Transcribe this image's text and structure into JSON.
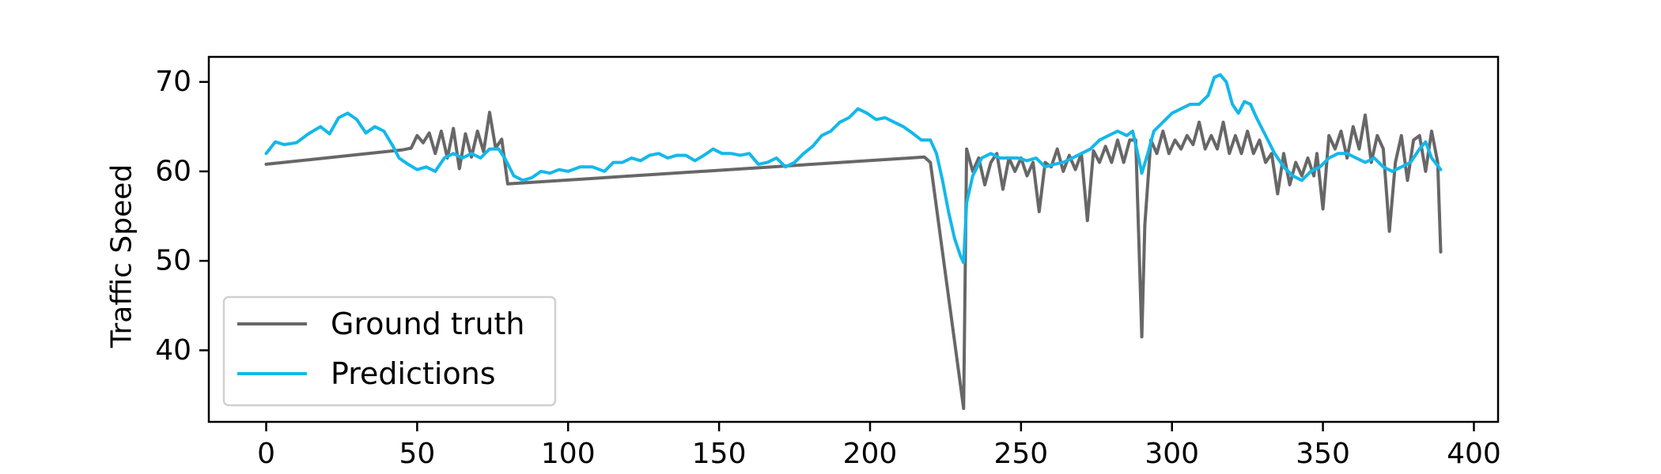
{
  "chart_data": {
    "type": "line",
    "title": "",
    "xlabel": "",
    "ylabel": "Traffic Speed",
    "xlim": [
      -19,
      408
    ],
    "ylim": [
      32,
      72.8
    ],
    "x_ticks": [
      0,
      50,
      100,
      150,
      200,
      250,
      300,
      350,
      400
    ],
    "y_ticks": [
      40,
      50,
      60,
      70
    ],
    "grid": false,
    "legend_position": "lower-left",
    "series": [
      {
        "name": "Ground truth",
        "color": "#676767",
        "points": [
          [
            0,
            60.8
          ],
          [
            45,
            62.4
          ],
          [
            48,
            62.6
          ],
          [
            50,
            64.0
          ],
          [
            52,
            63.2
          ],
          [
            54,
            64.3
          ],
          [
            56,
            62.0
          ],
          [
            58,
            64.5
          ],
          [
            60,
            61.5
          ],
          [
            62,
            64.8
          ],
          [
            64,
            60.3
          ],
          [
            66,
            64.2
          ],
          [
            68,
            61.6
          ],
          [
            70,
            64.5
          ],
          [
            72,
            62.2
          ],
          [
            74,
            66.6
          ],
          [
            76,
            62.6
          ],
          [
            78,
            63.6
          ],
          [
            80,
            58.6
          ],
          [
            218,
            61.6
          ],
          [
            220,
            61.0
          ],
          [
            231,
            33.5
          ],
          [
            232,
            62.5
          ],
          [
            234,
            60.0
          ],
          [
            236,
            61.5
          ],
          [
            238,
            58.5
          ],
          [
            240,
            61.0
          ],
          [
            242,
            62.0
          ],
          [
            244,
            58.0
          ],
          [
            246,
            61.5
          ],
          [
            248,
            60.0
          ],
          [
            250,
            61.5
          ],
          [
            252,
            59.5
          ],
          [
            254,
            61.0
          ],
          [
            256,
            55.5
          ],
          [
            258,
            61.0
          ],
          [
            260,
            60.5
          ],
          [
            262,
            62.5
          ],
          [
            264,
            60.0
          ],
          [
            266,
            61.8
          ],
          [
            268,
            60.2
          ],
          [
            270,
            62.0
          ],
          [
            272,
            54.5
          ],
          [
            274,
            62.3
          ],
          [
            276,
            61.0
          ],
          [
            278,
            62.8
          ],
          [
            280,
            61.0
          ],
          [
            282,
            63.5
          ],
          [
            284,
            61.0
          ],
          [
            286,
            63.5
          ],
          [
            288,
            63.5
          ],
          [
            290,
            41.5
          ],
          [
            291,
            54.0
          ],
          [
            293,
            63.5
          ],
          [
            295,
            62.0
          ],
          [
            297,
            64.5
          ],
          [
            299,
            62.0
          ],
          [
            301,
            63.5
          ],
          [
            303,
            62.5
          ],
          [
            305,
            64.0
          ],
          [
            307,
            63.0
          ],
          [
            309,
            65.5
          ],
          [
            311,
            62.5
          ],
          [
            313,
            64.0
          ],
          [
            315,
            62.5
          ],
          [
            317,
            65.5
          ],
          [
            319,
            62.0
          ],
          [
            321,
            64.0
          ],
          [
            323,
            62.0
          ],
          [
            325,
            64.5
          ],
          [
            327,
            62.0
          ],
          [
            329,
            63.5
          ],
          [
            331,
            61.0
          ],
          [
            333,
            62.0
          ],
          [
            335,
            57.5
          ],
          [
            337,
            62.0
          ],
          [
            339,
            58.5
          ],
          [
            341,
            61.0
          ],
          [
            343,
            59.5
          ],
          [
            345,
            61.5
          ],
          [
            347,
            59.5
          ],
          [
            348,
            62.0
          ],
          [
            350,
            55.8
          ],
          [
            352,
            64.0
          ],
          [
            354,
            62.5
          ],
          [
            356,
            64.5
          ],
          [
            358,
            61.5
          ],
          [
            360,
            65.0
          ],
          [
            362,
            62.5
          ],
          [
            364,
            66.3
          ],
          [
            366,
            61.0
          ],
          [
            368,
            64.0
          ],
          [
            370,
            62.5
          ],
          [
            372,
            53.3
          ],
          [
            374,
            61.0
          ],
          [
            376,
            64.0
          ],
          [
            378,
            59.0
          ],
          [
            380,
            63.5
          ],
          [
            382,
            64.0
          ],
          [
            384,
            60.0
          ],
          [
            386,
            64.5
          ],
          [
            388,
            61.0
          ],
          [
            389,
            51.0
          ]
        ]
      },
      {
        "name": "Predictions",
        "color": "#13b8ea",
        "points": [
          [
            0,
            62.0
          ],
          [
            3,
            63.3
          ],
          [
            6,
            63.0
          ],
          [
            10,
            63.2
          ],
          [
            14,
            64.2
          ],
          [
            18,
            65.0
          ],
          [
            21,
            64.2
          ],
          [
            24,
            66.0
          ],
          [
            27,
            66.5
          ],
          [
            30,
            65.8
          ],
          [
            33,
            64.3
          ],
          [
            36,
            65.0
          ],
          [
            39,
            64.5
          ],
          [
            42,
            62.8
          ],
          [
            44,
            61.5
          ],
          [
            47,
            60.8
          ],
          [
            50,
            60.2
          ],
          [
            53,
            60.5
          ],
          [
            56,
            60.0
          ],
          [
            59,
            61.5
          ],
          [
            62,
            62.0
          ],
          [
            65,
            61.5
          ],
          [
            68,
            62.0
          ],
          [
            71,
            61.5
          ],
          [
            74,
            62.5
          ],
          [
            77,
            62.5
          ],
          [
            79,
            61.5
          ],
          [
            82,
            59.5
          ],
          [
            85,
            59.0
          ],
          [
            88,
            59.3
          ],
          [
            91,
            60.0
          ],
          [
            94,
            59.8
          ],
          [
            97,
            60.2
          ],
          [
            100,
            60.0
          ],
          [
            104,
            60.5
          ],
          [
            108,
            60.5
          ],
          [
            112,
            60.0
          ],
          [
            115,
            61.0
          ],
          [
            118,
            61.0
          ],
          [
            121,
            61.5
          ],
          [
            124,
            61.2
          ],
          [
            127,
            61.8
          ],
          [
            130,
            62.0
          ],
          [
            133,
            61.5
          ],
          [
            136,
            61.8
          ],
          [
            139,
            61.8
          ],
          [
            142,
            61.2
          ],
          [
            145,
            61.8
          ],
          [
            148,
            62.5
          ],
          [
            151,
            62.0
          ],
          [
            154,
            62.0
          ],
          [
            157,
            61.8
          ],
          [
            160,
            62.0
          ],
          [
            163,
            60.8
          ],
          [
            166,
            61.0
          ],
          [
            169,
            61.5
          ],
          [
            172,
            60.5
          ],
          [
            175,
            61.0
          ],
          [
            178,
            62.0
          ],
          [
            181,
            62.8
          ],
          [
            184,
            64.0
          ],
          [
            187,
            64.5
          ],
          [
            190,
            65.5
          ],
          [
            193,
            66.0
          ],
          [
            196,
            67.0
          ],
          [
            199,
            66.5
          ],
          [
            202,
            65.8
          ],
          [
            205,
            66.0
          ],
          [
            208,
            65.5
          ],
          [
            211,
            65.0
          ],
          [
            214,
            64.3
          ],
          [
            217,
            63.5
          ],
          [
            220,
            63.5
          ],
          [
            222,
            62.0
          ],
          [
            224,
            59.0
          ],
          [
            226,
            55.5
          ],
          [
            228,
            52.5
          ],
          [
            230,
            50.5
          ],
          [
            231,
            49.8
          ],
          [
            232,
            56.5
          ],
          [
            234,
            59.5
          ],
          [
            237,
            61.5
          ],
          [
            240,
            62.0
          ],
          [
            243,
            61.5
          ],
          [
            246,
            61.5
          ],
          [
            249,
            61.5
          ],
          [
            252,
            61.2
          ],
          [
            255,
            61.5
          ],
          [
            258,
            60.5
          ],
          [
            261,
            60.8
          ],
          [
            264,
            61.0
          ],
          [
            267,
            61.5
          ],
          [
            270,
            62.0
          ],
          [
            273,
            62.5
          ],
          [
            276,
            63.5
          ],
          [
            279,
            64.0
          ],
          [
            282,
            64.5
          ],
          [
            285,
            64.0
          ],
          [
            287,
            64.5
          ],
          [
            289,
            61.5
          ],
          [
            290,
            59.8
          ],
          [
            292,
            62.0
          ],
          [
            294,
            64.5
          ],
          [
            297,
            65.5
          ],
          [
            300,
            66.5
          ],
          [
            303,
            67.0
          ],
          [
            306,
            67.5
          ],
          [
            309,
            67.5
          ],
          [
            312,
            68.5
          ],
          [
            314,
            70.5
          ],
          [
            316,
            70.8
          ],
          [
            318,
            70.0
          ],
          [
            320,
            67.5
          ],
          [
            322,
            66.5
          ],
          [
            324,
            67.8
          ],
          [
            326,
            67.5
          ],
          [
            328,
            66.0
          ],
          [
            331,
            64.0
          ],
          [
            334,
            62.0
          ],
          [
            337,
            60.5
          ],
          [
            340,
            59.5
          ],
          [
            343,
            59.0
          ],
          [
            346,
            60.0
          ],
          [
            349,
            60.5
          ],
          [
            352,
            61.5
          ],
          [
            355,
            62.0
          ],
          [
            358,
            62.0
          ],
          [
            361,
            61.5
          ],
          [
            364,
            61.0
          ],
          [
            367,
            61.5
          ],
          [
            370,
            60.5
          ],
          [
            373,
            60.0
          ],
          [
            376,
            60.5
          ],
          [
            379,
            61.0
          ],
          [
            382,
            62.5
          ],
          [
            384,
            63.3
          ],
          [
            386,
            61.5
          ],
          [
            389,
            60.2
          ]
        ]
      }
    ]
  }
}
